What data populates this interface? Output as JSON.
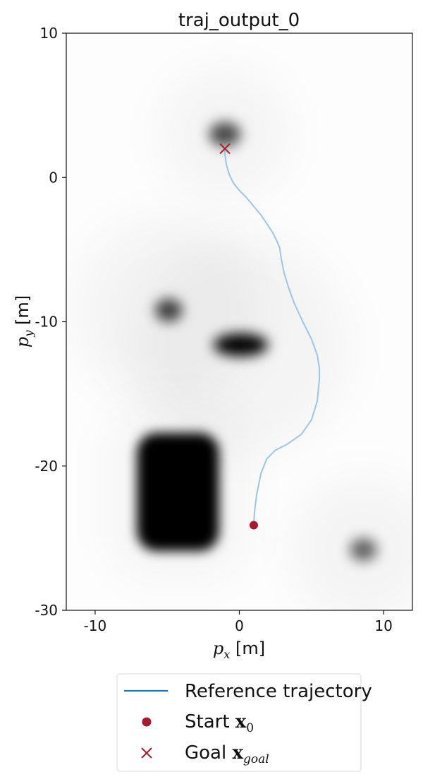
{
  "chart_data": {
    "type": "line",
    "title": "traj_output_0",
    "xlabel": {
      "symbol": "p",
      "sub": "x",
      "unit": " [m]"
    },
    "ylabel": {
      "symbol": "p",
      "sub": "y",
      "unit": " [m]"
    },
    "xlim": [
      -12,
      12
    ],
    "ylim": [
      -30,
      10
    ],
    "xticks": [
      -10,
      0,
      10
    ],
    "xtick_labels": [
      "-10",
      "0",
      "10"
    ],
    "yticks": [
      10,
      0,
      -10,
      -20,
      -30
    ],
    "ytick_labels": [
      "10",
      "0",
      "-10",
      "-20",
      "-30"
    ],
    "grid": false,
    "legend_position": "below",
    "background_field": {
      "colormap": "grayscale (white low, black high)",
      "blobs": [
        {
          "shape": "ellipse",
          "cx": -1.0,
          "cy": 3.0,
          "rx": 1.1,
          "ry": 0.85,
          "peak": 0.7,
          "halo": 4.5
        },
        {
          "shape": "ellipse",
          "cx": -4.9,
          "cy": -9.2,
          "rx": 0.95,
          "ry": 0.8,
          "peak": 0.75,
          "halo": 6.5
        },
        {
          "shape": "ellipse",
          "cx": 0.1,
          "cy": -11.6,
          "rx": 1.9,
          "ry": 0.8,
          "peak": 1.0,
          "halo": 7.5
        },
        {
          "shape": "rounded-rect",
          "x0": -7.1,
          "x1": -1.4,
          "y0": -25.9,
          "y1": -17.7,
          "peak": 1.0
        },
        {
          "shape": "ellipse",
          "cx": 8.6,
          "cy": -25.8,
          "rx": 0.95,
          "ry": 0.8,
          "peak": 0.6,
          "halo": 5.0
        }
      ]
    },
    "series": [
      {
        "name": "Reference trajectory",
        "color": "#9ec5e8",
        "x": [
          1.0,
          1.05,
          1.2,
          1.5,
          1.9,
          2.5,
          3.3,
          4.3,
          5.0,
          5.4,
          5.55,
          5.55,
          5.4,
          5.0,
          4.4,
          3.8,
          3.4,
          3.1,
          2.9,
          2.8,
          2.6,
          2.3,
          1.9,
          1.5,
          1.0,
          0.5,
          0.0,
          -0.4,
          -0.7,
          -0.9,
          -1.0,
          -1.0,
          -0.85
        ],
        "y": [
          -24.0,
          -23.2,
          -22.0,
          -20.5,
          -19.5,
          -18.9,
          -18.5,
          -17.8,
          -16.8,
          -15.5,
          -14.0,
          -13.2,
          -12.3,
          -11.2,
          -10.0,
          -8.7,
          -7.6,
          -6.6,
          -5.6,
          -4.9,
          -4.4,
          -3.8,
          -3.2,
          -2.6,
          -2.0,
          -1.4,
          -0.9,
          -0.4,
          0.2,
          0.9,
          1.6,
          1.9,
          1.9
        ]
      }
    ],
    "markers": {
      "start": {
        "name": "Start",
        "x": 1.0,
        "y": -24.1,
        "color": "#a51c30"
      },
      "goal": {
        "name": "Goal",
        "x": -1.0,
        "y": 2.0,
        "color": "#a51c30"
      }
    },
    "legend": [
      {
        "kind": "line",
        "color": "#1f77b4",
        "text": "Reference trajectory"
      },
      {
        "kind": "dot",
        "color": "#a51c30",
        "text": "Start ",
        "math": "x",
        "sub": "0"
      },
      {
        "kind": "cross",
        "color": "#a51c30",
        "text": "Goal ",
        "math": "x",
        "sub": "goal"
      }
    ]
  }
}
